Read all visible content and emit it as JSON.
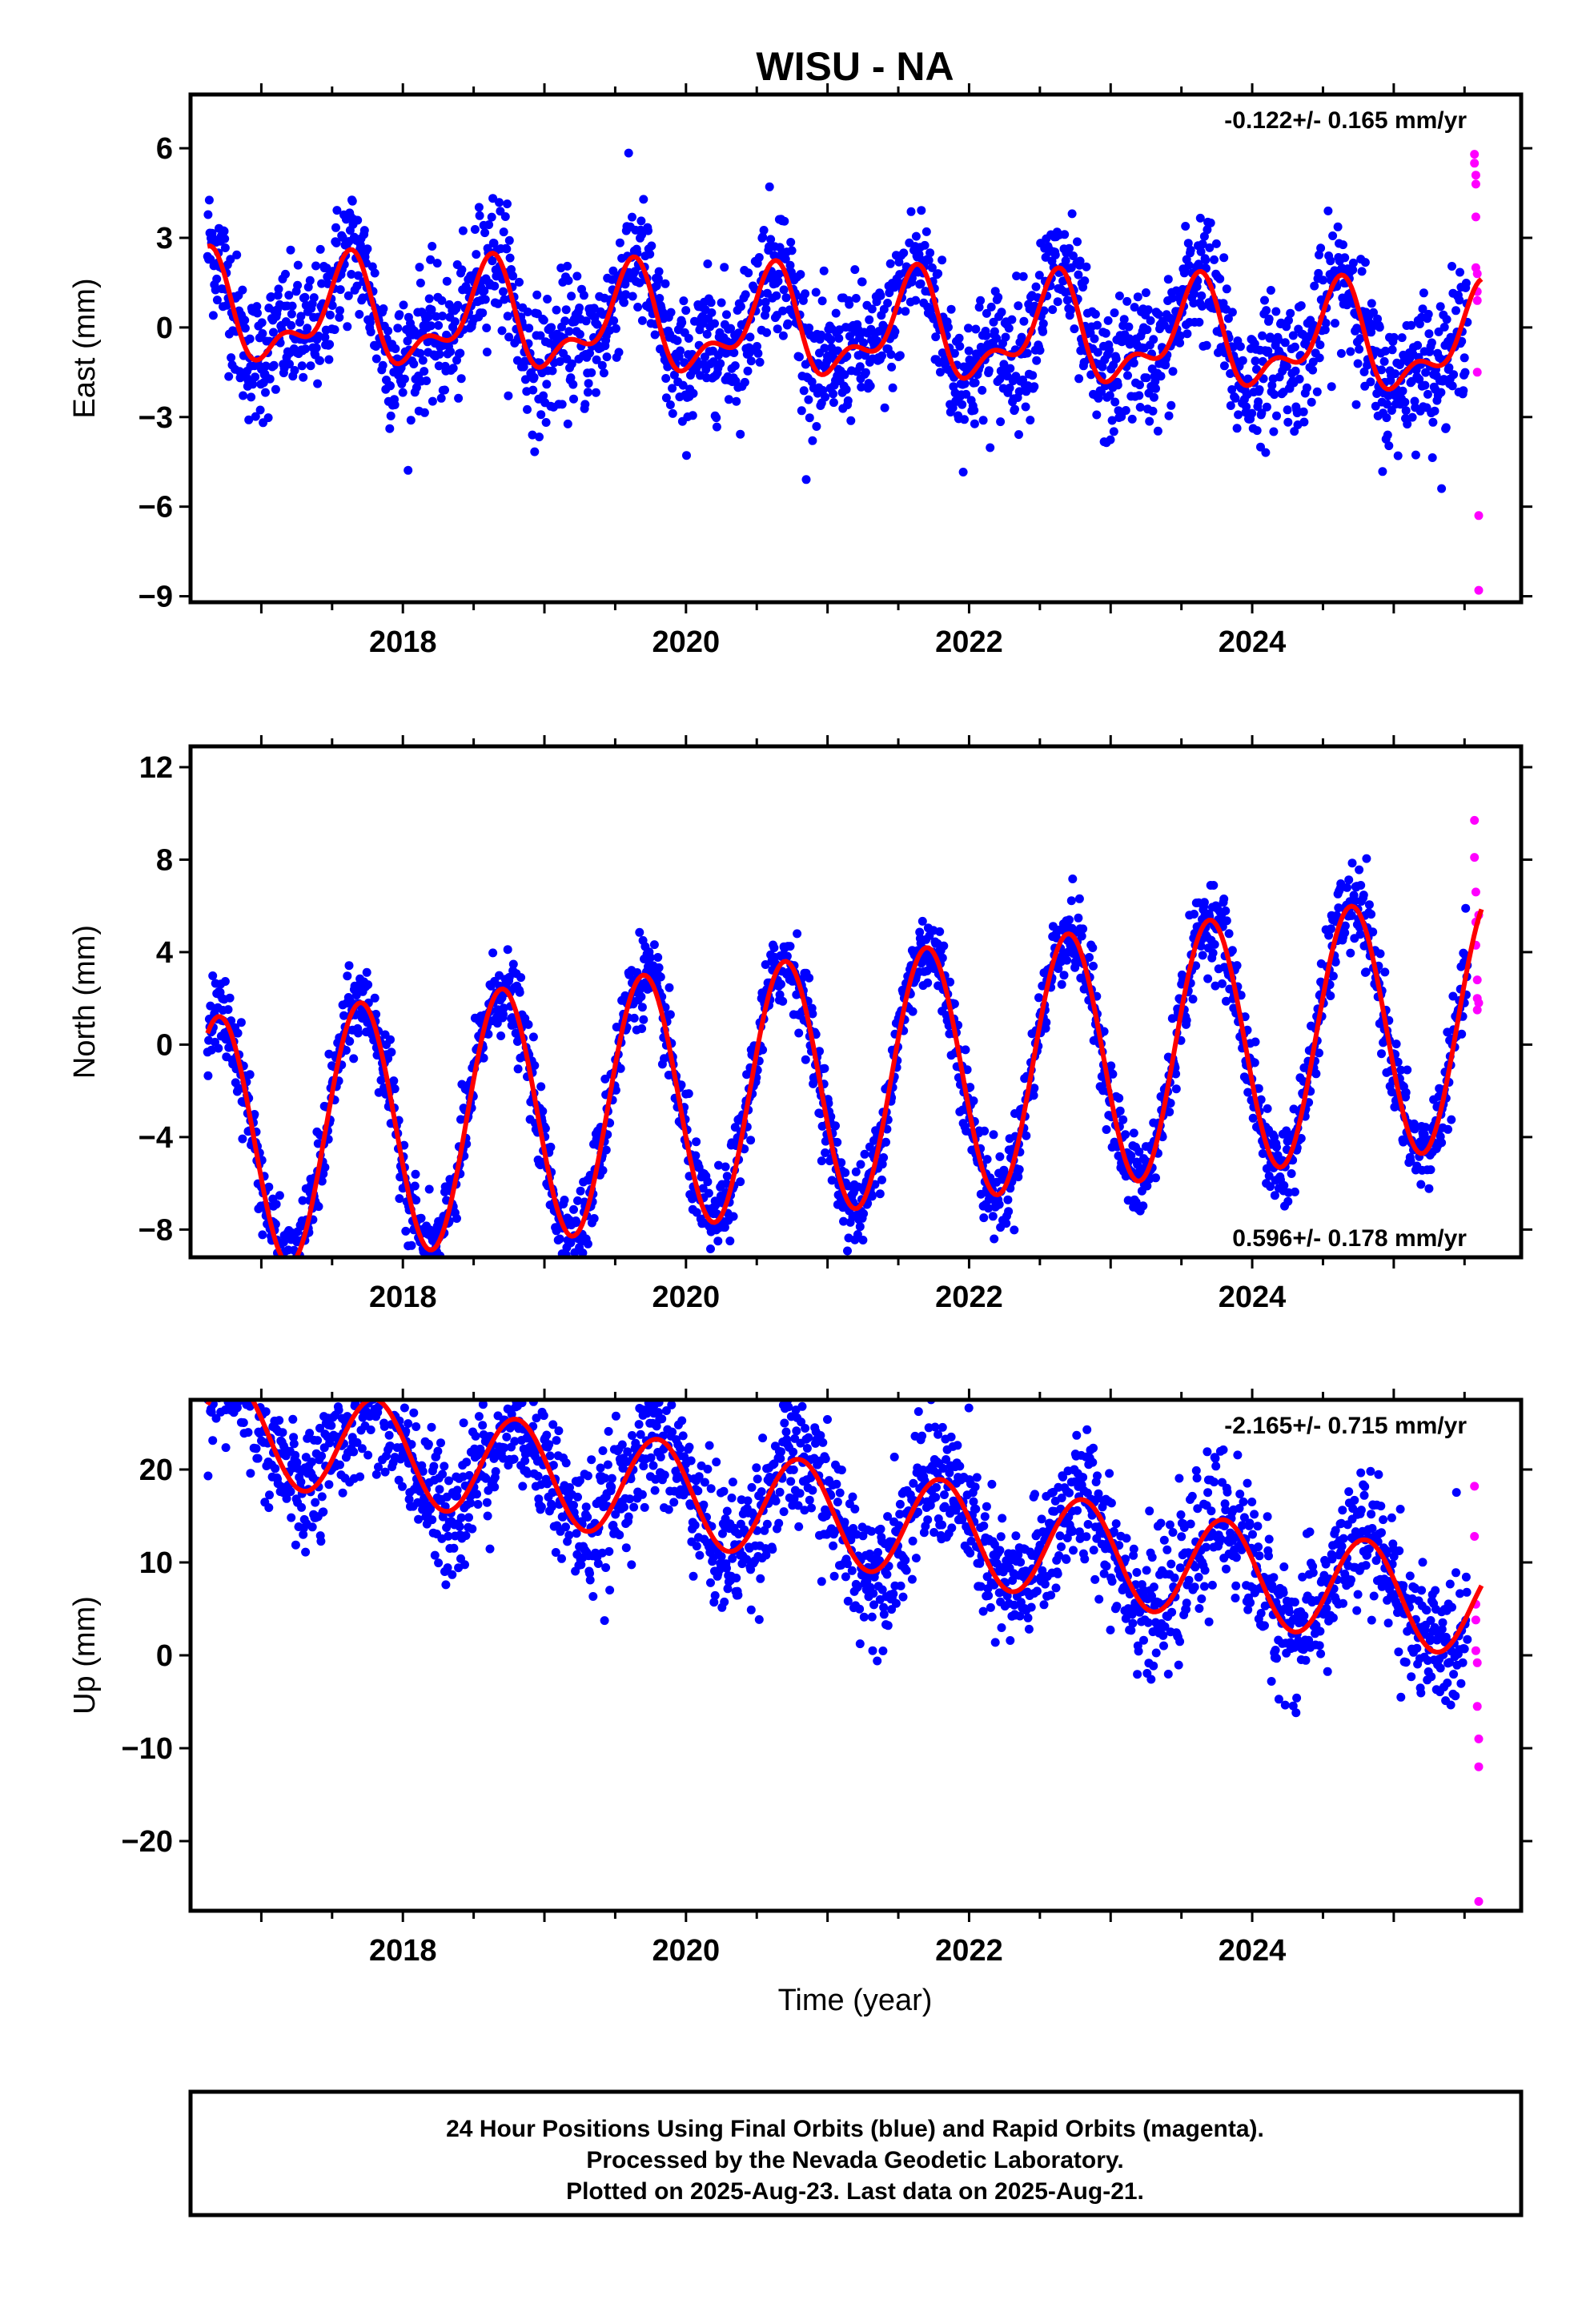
{
  "title": "WISU - NA",
  "xlabel": "Time (year)",
  "footer_lines": [
    "24 Hour Positions Using Final Orbits (blue) and Rapid Orbits (magenta).",
    "Processed by the Nevada Geodetic Laboratory.",
    "Plotted on 2025-Aug-23. Last data on 2025-Aug-21."
  ],
  "colors": {
    "final": "#0000ff",
    "rapid": "#ff00ff",
    "model": "#ff0000",
    "axes": "#000000"
  },
  "chart_data": [
    {
      "type": "scatter",
      "component": "east",
      "ylabel": "East (mm)",
      "rate": "-0.122+/- 0.165 mm/yr",
      "xlim": [
        2016.5,
        2025.9
      ],
      "ylim": [
        -9.2,
        7.8
      ],
      "yticks": [
        -9,
        -6,
        -3,
        0,
        3,
        6
      ],
      "ytick_labels": [
        "−9",
        "−6",
        "−3",
        "0",
        "3",
        "6"
      ],
      "xticks": [
        2018,
        2020,
        2022,
        2024
      ],
      "xtick_labels": [
        "2018",
        "2020",
        "2022",
        "2024"
      ],
      "model": {
        "offset": 0.5,
        "trend": -0.122,
        "annual_amp": 1.5,
        "annual_phase": 2017.6,
        "semi_amp": 0.8,
        "semi_phase": 2016.65
      },
      "scatter_sigma": 1.1,
      "n_final": 2200,
      "x_start": 2016.62,
      "x_end_final": 2025.52,
      "rapid_points": {
        "x": [
          2025.57,
          2025.57,
          2025.58,
          2025.58,
          2025.58,
          2025.58,
          2025.59,
          2025.59,
          2025.59,
          2025.59,
          2025.6,
          2025.6
        ],
        "y": [
          5.8,
          5.5,
          5.1,
          4.8,
          3.7,
          2.0,
          1.8,
          1.2,
          0.9,
          -1.5,
          -6.3,
          -8.8
        ]
      }
    },
    {
      "type": "scatter",
      "component": "north",
      "ylabel": "North (mm)",
      "rate": "0.596+/- 0.178 mm/yr",
      "xlim": [
        2016.5,
        2025.9
      ],
      "ylim": [
        -9.2,
        12.9
      ],
      "yticks": [
        -8,
        -4,
        0,
        4,
        8,
        12
      ],
      "ytick_labels": [
        "−8",
        "−4",
        "0",
        "4",
        "8",
        "12"
      ],
      "xticks": [
        2018,
        2020,
        2022,
        2024
      ],
      "xtick_labels": [
        "2018",
        "2020",
        "2022",
        "2024"
      ],
      "model": {
        "offset": -4.4,
        "trend": 0.596,
        "annual_amp": 5.5,
        "annual_phase": 2016.7,
        "semi_amp": 0,
        "semi_phase": 2016.5
      },
      "scatter_sigma": 0.9,
      "n_final": 2200,
      "x_start": 2016.62,
      "x_end_final": 2025.52,
      "rapid_points": {
        "x": [
          2025.57,
          2025.57,
          2025.58,
          2025.58,
          2025.58,
          2025.59,
          2025.59,
          2025.59,
          2025.6,
          2025.6
        ],
        "y": [
          9.7,
          8.1,
          6.6,
          5.3,
          4.3,
          2.8,
          2.0,
          1.5,
          1.8,
          5.6
        ]
      }
    },
    {
      "type": "scatter",
      "component": "up",
      "ylabel": "Up (mm)",
      "rate": "-2.165+/- 0.715 mm/yr",
      "xlim": [
        2016.5,
        2025.9
      ],
      "ylim": [
        -27.5,
        27.5
      ],
      "yticks": [
        -20,
        -10,
        0,
        10,
        20
      ],
      "ytick_labels": [
        "−20",
        "−10",
        "0",
        "10",
        "20"
      ],
      "xticks": [
        2018,
        2020,
        2022,
        2024
      ],
      "xtick_labels": [
        "2018",
        "2020",
        "2022",
        "2024"
      ],
      "model": {
        "offset": 24.9,
        "trend": -2.165,
        "annual_amp": 5.5,
        "annual_phase": 2016.8,
        "semi_amp": 0,
        "semi_phase": 2016.5
      },
      "scatter_sigma": 3.6,
      "n_final": 2200,
      "x_start": 2016.62,
      "x_end_final": 2025.52,
      "rapid_points": {
        "x": [
          2025.57,
          2025.57,
          2025.58,
          2025.58,
          2025.58,
          2025.59,
          2025.59,
          2025.6,
          2025.6,
          2025.6
        ],
        "y": [
          18.2,
          12.8,
          5.5,
          3.8,
          0.5,
          -0.8,
          -5.5,
          -9.0,
          -12.0,
          -26.5
        ]
      }
    }
  ]
}
